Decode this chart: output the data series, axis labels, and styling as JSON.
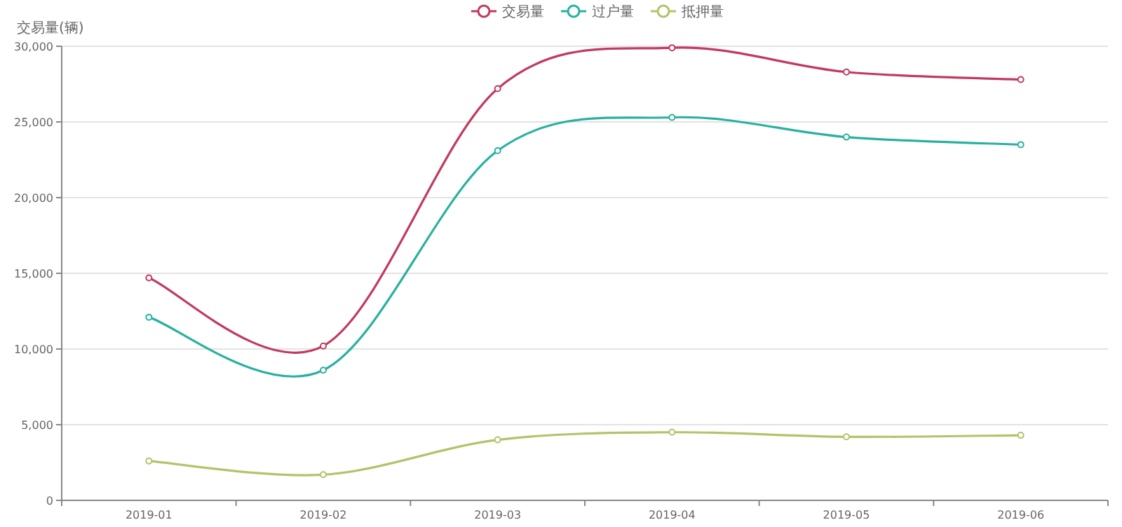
{
  "chart_data": {
    "type": "line",
    "ylabel": "交易量(辆)",
    "categories": [
      "2019-01",
      "2019-02",
      "2019-03",
      "2019-04",
      "2019-05",
      "2019-06"
    ],
    "series": [
      {
        "name": "交易量",
        "color": "#c23a5e",
        "values": [
          14700,
          10200,
          27200,
          29900,
          28300,
          27800
        ]
      },
      {
        "name": "过户量",
        "color": "#2ab0a0",
        "values": [
          12100,
          8600,
          23100,
          25300,
          24000,
          23500
        ]
      },
      {
        "name": "抵押量",
        "color": "#b5c26a",
        "values": [
          2600,
          1700,
          4000,
          4500,
          4200,
          4300
        ]
      }
    ],
    "ylim": [
      0,
      30000
    ],
    "yticks": [
      {
        "value": 0,
        "label": "0"
      },
      {
        "value": 5000,
        "label": "5,000"
      },
      {
        "value": 10000,
        "label": "10,000"
      },
      {
        "value": 15000,
        "label": "15,000"
      },
      {
        "value": 20000,
        "label": "20,000"
      },
      {
        "value": 25000,
        "label": "25,000"
      },
      {
        "value": 30000,
        "label": "30,000"
      }
    ],
    "grid": "y",
    "legend": "top",
    "marker": "circle",
    "line_style": "solid"
  }
}
